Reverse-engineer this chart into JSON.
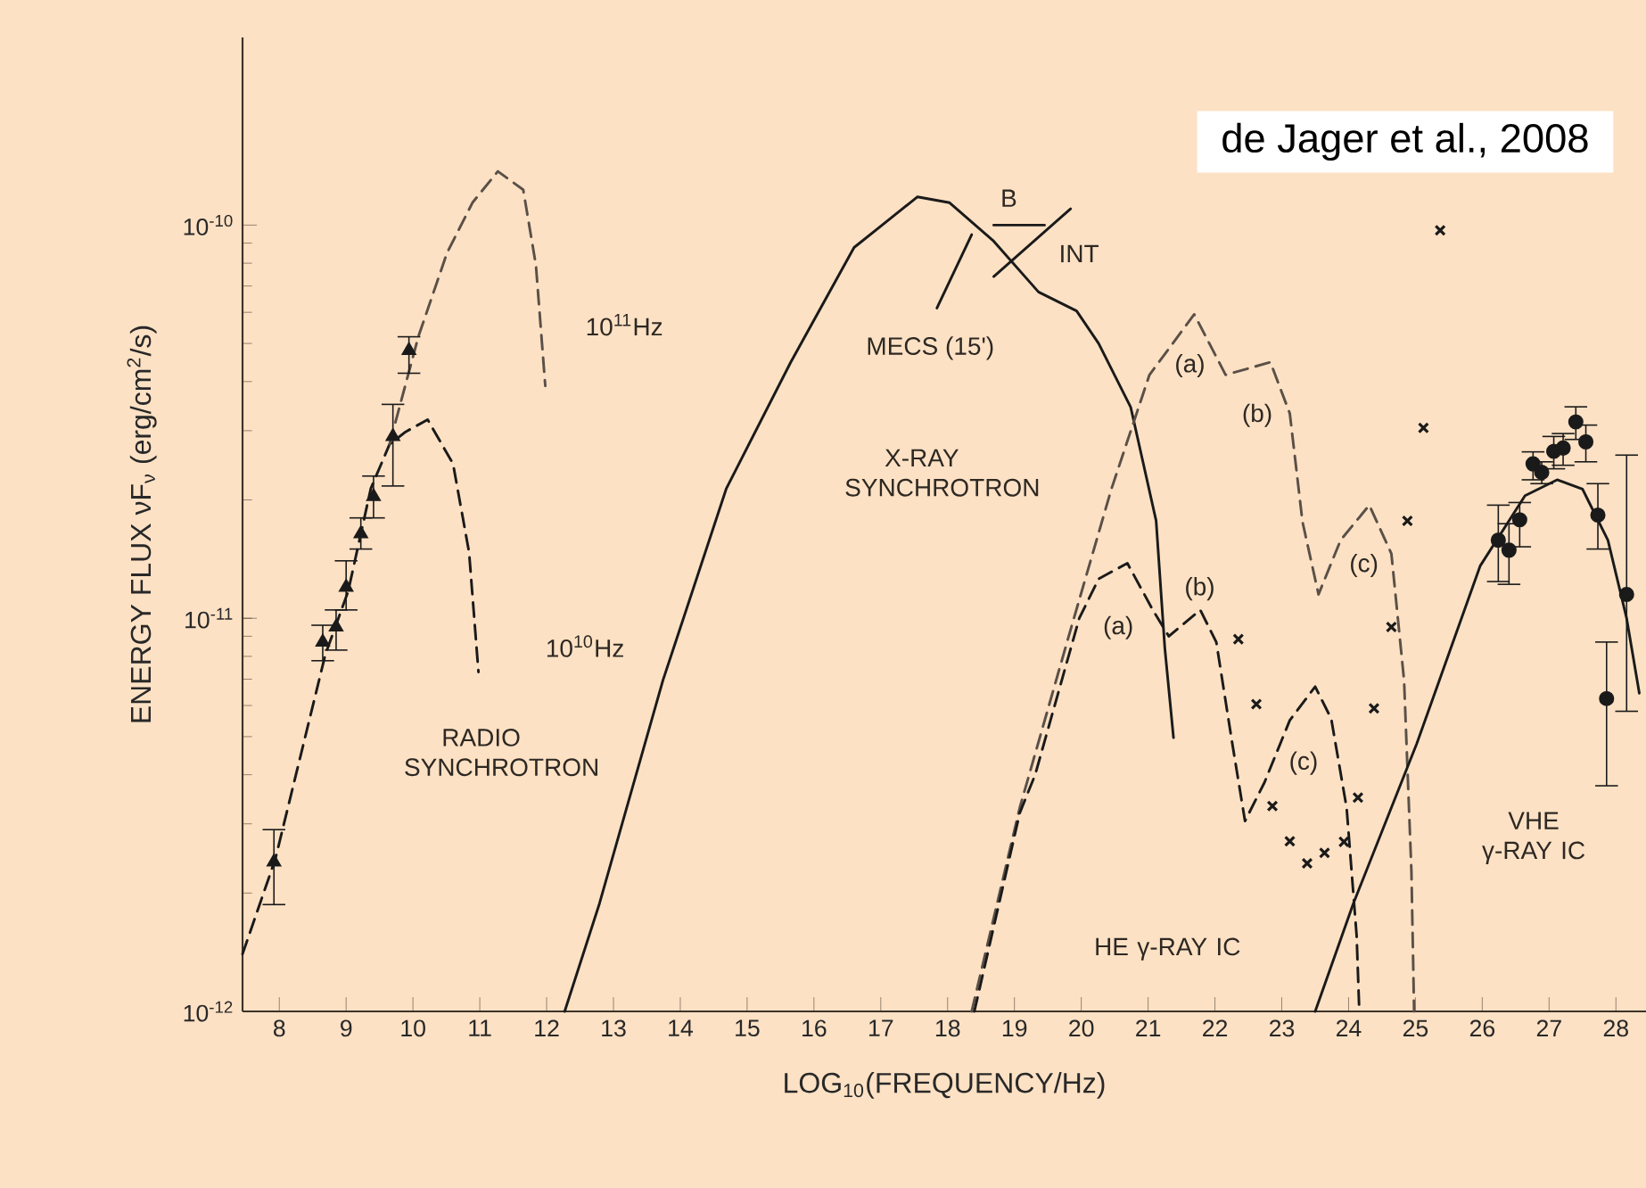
{
  "chart_data": {
    "type": "line",
    "xlabel": "LOG$_{10}$(FREQUENCY/Hz)",
    "ylabel": "ENERGY FLUX νF$_{ν}$ (erg/cm$^{2}$/s)",
    "log": "y",
    "xlim": [
      7.45,
      28.45
    ],
    "ylim": [
      1e-12,
      3e-10
    ],
    "xticks": [
      8,
      9,
      10,
      11,
      12,
      13,
      14,
      15,
      16,
      17,
      18,
      19,
      20,
      21,
      22,
      23,
      24,
      25,
      26,
      27,
      28
    ],
    "yticks": [
      {
        "value": 1e-12,
        "label": "10$^{-12}$"
      },
      {
        "value": 1e-11,
        "label": "10$^{-11}$"
      },
      {
        "value": 1e-10,
        "label": "10$^{-10}$"
      }
    ],
    "series": [
      {
        "line_style": "dashed",
        "color": "#1a1a1a",
        "x": [
          7.45,
          7.94,
          8.69,
          9.03,
          9.37,
          9.65,
          9.89,
          10.22,
          10.6,
          10.84,
          10.98
        ],
        "values": [
          1.4e-12,
          2.44e-12,
          8.1e-12,
          1.17e-11,
          2.14e-11,
          2.77e-11,
          2.98e-11,
          3.2e-11,
          2.47e-11,
          1.47e-11,
          7.3e-12
        ]
      },
      {
        "line_style": "dashed",
        "color": "#5a5048",
        "x": [
          9.65,
          10.08,
          10.51,
          10.89,
          11.27,
          11.65,
          11.84,
          11.98
        ],
        "values": [
          2.77e-11,
          5.2e-11,
          8.5e-11,
          1.14e-10,
          1.37e-10,
          1.23e-10,
          7.9e-11,
          3.9e-11
        ]
      },
      {
        "type": "scatter",
        "marker": "triangle",
        "color": "#1a1a1a",
        "x": [
          7.92,
          8.65,
          8.85,
          9.0,
          9.22,
          9.41,
          9.7,
          9.94
        ],
        "values": [
          2.4e-12,
          8.7e-12,
          9.5e-12,
          1.2e-11,
          1.64e-11,
          2.04e-11,
          2.9e-11,
          4.8e-11
        ],
        "errors": [
          [
            1.87e-12,
            2.9e-12
          ],
          [
            7.8e-12,
            9.6e-12
          ],
          [
            8.3e-12,
            1.05e-11
          ],
          [
            1.05e-11,
            1.4e-11
          ],
          [
            1.5e-11,
            1.8e-11
          ],
          [
            1.8e-11,
            2.3e-11
          ],
          [
            2.17e-11,
            3.5e-11
          ],
          [
            4.2e-11,
            5.2e-11
          ]
        ]
      },
      {
        "line_style": "solid",
        "color": "#1a1a1a",
        "x": [
          12.27,
          12.79,
          13.74,
          14.69,
          15.65,
          16.6,
          17.55,
          18.03,
          18.69,
          19.36,
          19.93,
          20.26,
          20.74,
          21.12,
          21.25,
          21.38
        ],
        "values": [
          1e-12,
          1.88e-12,
          6.95e-12,
          2.14e-11,
          4.47e-11,
          8.77e-11,
          1.18e-10,
          1.14e-10,
          9.1e-11,
          6.76e-11,
          6.05e-11,
          5e-11,
          3.44e-11,
          1.77e-11,
          8.4e-12,
          4.97e-12
        ]
      },
      {
        "line_style": "solid",
        "color": "#1a1a1a",
        "x": [
          17.84,
          18.36
        ],
        "values": [
          6.15e-11,
          9.46e-11
        ]
      },
      {
        "line_style": "solid",
        "color": "#1a1a1a",
        "x": [
          18.69,
          19.84
        ],
        "values": [
          7.4e-11,
          1.1e-10
        ]
      },
      {
        "line_style": "solid",
        "color": "#1a1a1a",
        "x": [
          18.69,
          19.45
        ],
        "values": [
          1e-10,
          1e-10
        ]
      },
      {
        "line_style": "dashed",
        "color": "#5a5048",
        "x": [
          18.36,
          19.08,
          19.84,
          20.45,
          21.02,
          21.69,
          22.16,
          22.83,
          23.12,
          23.31,
          23.55,
          23.88,
          24.31,
          24.64,
          24.83,
          24.94,
          24.98
        ],
        "values": [
          1e-12,
          3.3e-12,
          9.35e-12,
          2.13e-11,
          4.16e-11,
          5.93e-11,
          4.16e-11,
          4.48e-11,
          3.32e-11,
          1.76e-11,
          1.15e-11,
          1.58e-11,
          1.94e-11,
          1.46e-11,
          6.95e-12,
          2.27e-12,
          1e-12
        ]
      },
      {
        "line_style": "dashed",
        "color": "#1a1a1a",
        "x": [
          18.4,
          19.08,
          19.31,
          19.97,
          20.26,
          20.69,
          21.07,
          21.31,
          21.78,
          22.02,
          22.26,
          22.45,
          22.74,
          23.12,
          23.5,
          23.74,
          23.97,
          24.12,
          24.16
        ],
        "values": [
          1e-12,
          3.2e-12,
          4e-12,
          1e-11,
          1.26e-11,
          1.38e-11,
          1.05e-11,
          9e-12,
          1.05e-11,
          8.7e-12,
          4.8e-12,
          3.05e-12,
          3.82e-12,
          5.5e-12,
          6.7e-12,
          5.55e-12,
          3.3e-12,
          1.56e-12,
          1e-12
        ]
      },
      {
        "type": "scatter",
        "marker": "cross",
        "color": "#1a1a1a",
        "x": [
          25.37,
          25.12,
          24.88,
          24.64,
          24.38,
          24.14,
          23.93,
          23.64,
          23.38,
          23.12,
          22.86,
          22.62,
          22.35
        ],
        "values": [
          9.7e-11,
          3.05e-11,
          1.77e-11,
          9.5e-12,
          5.9e-12,
          3.5e-12,
          2.7e-12,
          2.53e-12,
          2.38e-12,
          2.71e-12,
          3.33e-12,
          6.05e-12,
          8.85e-12
        ]
      },
      {
        "line_style": "solid",
        "color": "#1a1a1a",
        "x": [
          23.5,
          24.07,
          25.02,
          25.97,
          26.64,
          27.12,
          27.5,
          27.88,
          28.16,
          28.35
        ],
        "values": [
          1e-12,
          1.88e-12,
          4.8e-12,
          1.36e-11,
          2.05e-11,
          2.25e-11,
          2.13e-11,
          1.58e-11,
          1e-11,
          6.45e-12
        ]
      },
      {
        "type": "scatter",
        "marker": "circle",
        "color": "#1a1a1a",
        "x": [
          26.24,
          26.4,
          26.56,
          26.76,
          26.89,
          27.07,
          27.21,
          27.4,
          27.55,
          27.73,
          27.86,
          28.16
        ],
        "values": [
          1.58e-11,
          1.49e-11,
          1.78e-11,
          2.47e-11,
          2.35e-11,
          2.66e-11,
          2.71e-11,
          3.16e-11,
          2.81e-11,
          1.83e-11,
          6.25e-12,
          1.15e-11
        ],
        "errors": [
          [
            1.24e-11,
            1.94e-11
          ],
          [
            1.22e-11,
            1.74e-11
          ],
          [
            1.52e-11,
            1.97e-11
          ],
          [
            2.25e-11,
            2.65e-11
          ],
          [
            2.2e-11,
            2.5e-11
          ],
          [
            2.4e-11,
            2.9e-11
          ],
          [
            2.45e-11,
            2.95e-11
          ],
          [
            2.85e-11,
            3.45e-11
          ],
          [
            2.5e-11,
            3.1e-11
          ],
          [
            1.5e-11,
            2.2e-11
          ],
          [
            3.75e-12,
            8.7e-12
          ],
          [
            5.8e-12,
            2.6e-11
          ]
        ]
      }
    ],
    "annotations": [
      "de Jager et al., 2008",
      "10$^{11}$Hz",
      "10$^{10}$Hz",
      "RADIO SYNCHROTRON",
      "MECS (15')",
      "B",
      "INT",
      "X-RAY SYNCHROTRON",
      "(a)",
      "(b)",
      "(c)",
      "(a)",
      "(b)",
      "(c)",
      "HE γ-RAY IC",
      "VHE γ-RAY IC"
    ]
  }
}
